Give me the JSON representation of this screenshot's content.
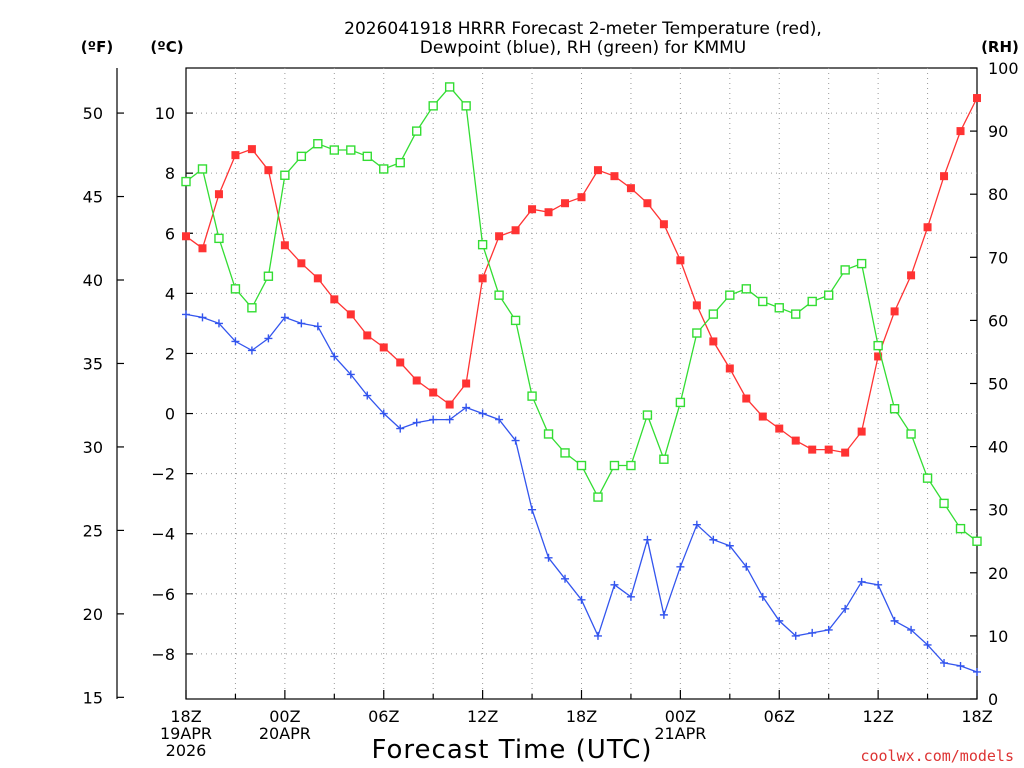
{
  "chart_data": {
    "type": "line",
    "title_line1": "2026041918 HRRR Forecast 2-meter Temperature (red),",
    "title_line2": "Dewpoint (blue), RH (green) for KMMU",
    "xlabel": "Forecast Time (UTC)",
    "credit": "coolwx.com/models",
    "left_f_label": "(ºF)",
    "left_c_label": "(ºC)",
    "right_label": "(RH)",
    "x_hours": [
      0,
      1,
      2,
      3,
      4,
      5,
      6,
      7,
      8,
      9,
      10,
      11,
      12,
      13,
      14,
      15,
      16,
      17,
      18,
      19,
      20,
      21,
      22,
      23,
      24,
      25,
      26,
      27,
      28,
      29,
      30,
      31,
      32,
      33,
      34,
      35,
      36,
      37,
      38,
      39,
      40,
      41,
      42,
      43,
      44,
      45,
      46,
      47,
      48
    ],
    "xlim": [
      0,
      48
    ],
    "c_ylim": [
      -9.5,
      11.5
    ],
    "rh_ylim": [
      0,
      100
    ],
    "f_ticks": [
      15,
      20,
      25,
      30,
      35,
      40,
      45,
      50
    ],
    "c_ticks": [
      -8,
      -6,
      -4,
      -2,
      0,
      2,
      4,
      6,
      8,
      10
    ],
    "rh_ticks": [
      0,
      10,
      20,
      30,
      40,
      50,
      60,
      70,
      80,
      90,
      100
    ],
    "x_tick_labels": [
      {
        "hour": 0,
        "lines": [
          "18Z",
          "19APR",
          "2026"
        ]
      },
      {
        "hour": 6,
        "lines": [
          "00Z",
          "20APR"
        ]
      },
      {
        "hour": 12,
        "lines": [
          "06Z"
        ]
      },
      {
        "hour": 18,
        "lines": [
          "12Z"
        ]
      },
      {
        "hour": 24,
        "lines": [
          "18Z"
        ]
      },
      {
        "hour": 30,
        "lines": [
          "00Z",
          "21APR"
        ]
      },
      {
        "hour": 36,
        "lines": [
          "06Z"
        ]
      },
      {
        "hour": 42,
        "lines": [
          "12Z"
        ]
      },
      {
        "hour": 48,
        "lines": [
          "18Z"
        ]
      }
    ],
    "series": [
      {
        "name": "Temperature",
        "unit": "C",
        "color": "#ff3333",
        "marker": "filled-square",
        "values": [
          5.9,
          5.5,
          7.3,
          8.6,
          8.8,
          8.1,
          5.6,
          5.0,
          4.5,
          3.8,
          3.3,
          2.6,
          2.2,
          1.7,
          1.1,
          0.7,
          0.3,
          1.0,
          4.5,
          5.9,
          6.1,
          6.8,
          6.7,
          7.0,
          7.2,
          8.1,
          7.9,
          7.5,
          7.0,
          6.3,
          5.1,
          3.6,
          2.4,
          1.5,
          0.5,
          -0.1,
          -0.5,
          -0.9,
          -1.2,
          -1.2,
          -1.3,
          -0.6,
          1.9,
          3.4,
          4.6,
          6.2,
          7.9,
          9.4,
          10.5
        ]
      },
      {
        "name": "Dewpoint",
        "unit": "C",
        "color": "#3355ee",
        "marker": "plus",
        "values": [
          3.3,
          3.2,
          3.0,
          2.4,
          2.1,
          2.5,
          3.2,
          3.0,
          2.9,
          1.9,
          1.3,
          0.6,
          -0.0,
          -0.5,
          -0.3,
          -0.2,
          -0.2,
          0.2,
          0.0,
          -0.2,
          -0.9,
          -3.2,
          -4.8,
          -5.5,
          -6.2,
          -7.4,
          -5.7,
          -6.1,
          -4.2,
          -6.7,
          -5.1,
          -3.7,
          -4.2,
          -4.4,
          -5.1,
          -6.1,
          -6.9,
          -7.4,
          -7.3,
          -7.2,
          -6.5,
          -5.6,
          -5.7,
          -6.9,
          -7.2,
          -7.7,
          -8.3,
          -8.4,
          -8.6
        ]
      },
      {
        "name": "RH",
        "unit": "%",
        "color": "#33dd33",
        "marker": "open-square",
        "values": [
          82,
          84,
          73,
          65,
          62,
          67,
          83,
          86,
          88,
          87,
          87,
          86,
          84,
          85,
          90,
          94,
          97,
          94,
          72,
          64,
          60,
          48,
          42,
          39,
          37,
          32,
          37,
          37,
          45,
          38,
          47,
          58,
          61,
          64,
          65,
          63,
          62,
          61,
          63,
          64,
          68,
          69,
          56,
          46,
          42,
          35,
          31,
          27,
          25
        ]
      }
    ]
  }
}
